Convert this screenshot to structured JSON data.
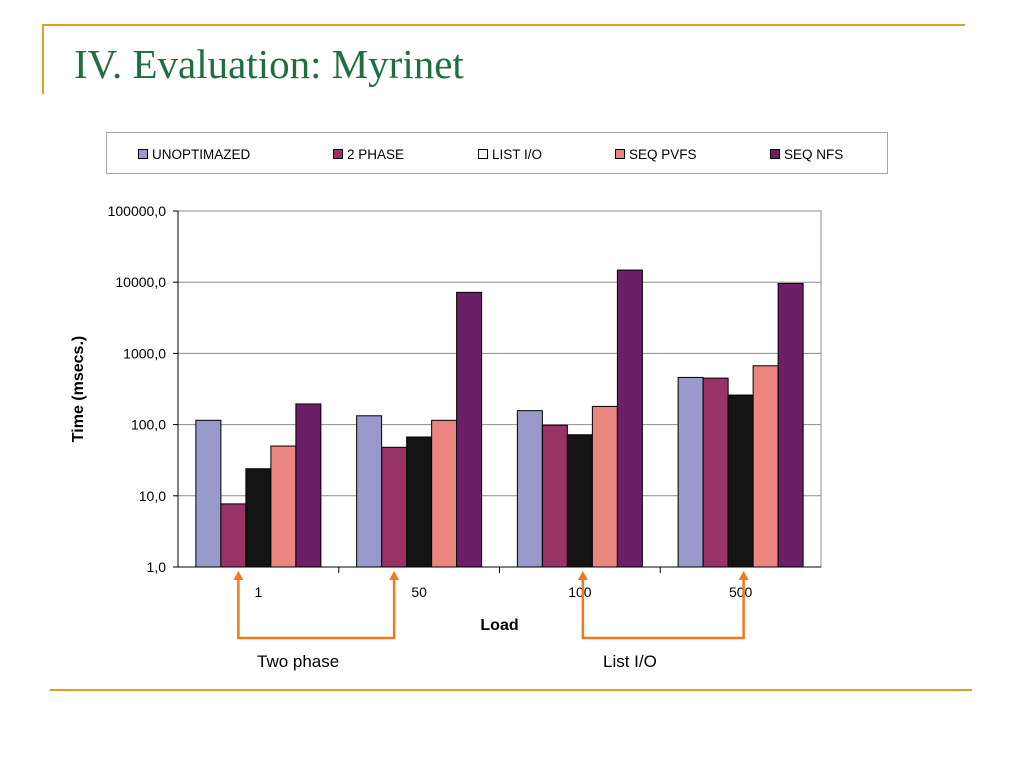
{
  "slide": {
    "title": "IV. Evaluation: Myrinet",
    "accent_color": "#d9a520",
    "title_color": "#1f6e3f"
  },
  "annotations": {
    "left_label": "Two phase",
    "right_label": "List I/O",
    "arrow_color": "#ee7a1f"
  },
  "chart_data": {
    "type": "bar",
    "title": "",
    "xlabel": "Load",
    "ylabel": "Time (msecs.)",
    "y_scale": "log",
    "ylim": [
      1,
      100000
    ],
    "y_ticks": [
      "100000,0",
      "10000,0",
      "1000,0",
      "100,0",
      "10,0",
      "1,0"
    ],
    "grid": true,
    "legend_position": "top",
    "categories": [
      "1",
      "50",
      "100",
      "500"
    ],
    "series": [
      {
        "name": "UNOPTIMAZED",
        "color": "#9999cc",
        "values": [
          115,
          133,
          157,
          460
        ]
      },
      {
        "name": "2 PHASE",
        "color": "#993366",
        "values": [
          7.7,
          48,
          98,
          450
        ]
      },
      {
        "name": "LIST I/O",
        "color": "#141414",
        "values": [
          24,
          67,
          72,
          260
        ]
      },
      {
        "name": "SEQ PVFS",
        "color": "#eb8580",
        "values": [
          50,
          115,
          180,
          670
        ]
      },
      {
        "name": "SEQ NFS",
        "color": "#6b1f66",
        "values": [
          195,
          7200,
          14800,
          9600
        ]
      }
    ]
  }
}
